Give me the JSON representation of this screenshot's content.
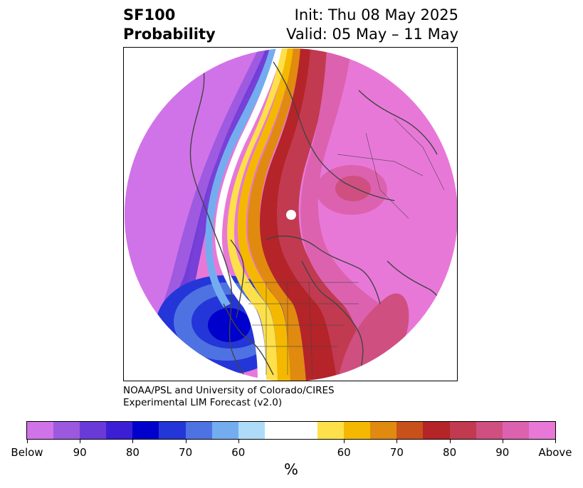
{
  "header": {
    "title_line1": "SF100",
    "title_line2": "Probability",
    "init_text": "Init: Thu 08 May 2025",
    "valid_text": "Valid: 05 May – 11 May"
  },
  "credit": {
    "line1": "NOAA/PSL and University of Colorado/CIRES",
    "line2": "Experimental LIM Forecast (v2.0)"
  },
  "colorbar": {
    "unit": "%",
    "labels": [
      "Below",
      "90",
      "80",
      "70",
      "60",
      "60",
      "70",
      "80",
      "90",
      "Above"
    ],
    "colors": [
      "#d073e8",
      "#9b59e0",
      "#6a3ad8",
      "#3c1fd4",
      "#0000cc",
      "#2436d8",
      "#4f72e3",
      "#73adf0",
      "#aedcf8",
      "#ffffff",
      "#fde04a",
      "#f5b800",
      "#e08a10",
      "#c8501a",
      "#b42428",
      "#c23a50",
      "#cf4f80",
      "#dc62b0",
      "#e878d8"
    ]
  }
}
